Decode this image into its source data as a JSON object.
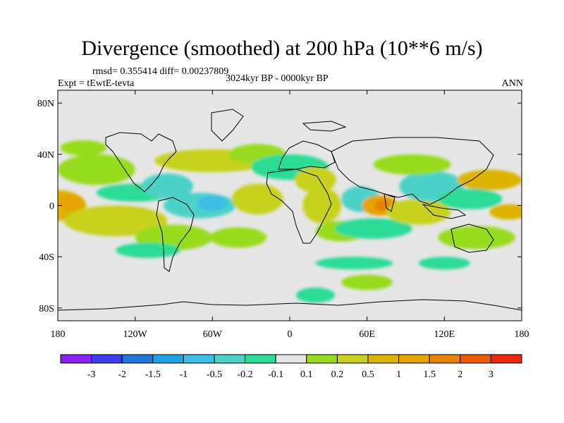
{
  "title": "Divergence (smoothed) at 200 hPa (10**6 m/s)",
  "stats": "rmsd= 0.355414 diff= 0.00237809",
  "experiment": "Expt = tEwtE-tevta",
  "period": "3024kyr BP - 0000kyr BP",
  "season": "ANN",
  "map": {
    "lon_range": [
      -180,
      180
    ],
    "lat_range": [
      -90,
      90
    ],
    "lon_ticks": [
      {
        "value": -180,
        "label": "180"
      },
      {
        "value": -120,
        "label": "120W"
      },
      {
        "value": -60,
        "label": "60W"
      },
      {
        "value": 0,
        "label": "0"
      },
      {
        "value": 60,
        "label": "60E"
      },
      {
        "value": 120,
        "label": "120E"
      },
      {
        "value": 180,
        "label": "180"
      }
    ],
    "lat_ticks": [
      {
        "value": 80,
        "label": "80N"
      },
      {
        "value": 40,
        "label": "40N"
      },
      {
        "value": 0,
        "label": "0"
      },
      {
        "value": -40,
        "label": "40S"
      },
      {
        "value": -80,
        "label": "80S"
      }
    ],
    "neutral_color": "#e6e6e6",
    "anomaly_regions": [
      {
        "lon": -180,
        "lat": 0,
        "rlon": 22,
        "rlat": 12,
        "level": 3
      },
      {
        "lon": -170,
        "lat": 2,
        "rlon": 10,
        "rlat": 6,
        "level": 4
      },
      {
        "lon": -135,
        "lat": -12,
        "rlon": 40,
        "rlat": 12,
        "level": 2
      },
      {
        "lon": -150,
        "lat": 28,
        "rlon": 30,
        "rlat": 12,
        "level": 1
      },
      {
        "lon": -160,
        "lat": 45,
        "rlon": 18,
        "rlat": 6,
        "level": 1
      },
      {
        "lon": -120,
        "lat": 10,
        "rlon": 30,
        "rlat": 7,
        "level": -1
      },
      {
        "lon": -95,
        "lat": 15,
        "rlon": 20,
        "rlat": 10,
        "level": -2
      },
      {
        "lon": -70,
        "lat": 0,
        "rlon": 28,
        "rlat": 10,
        "level": -2
      },
      {
        "lon": -60,
        "lat": 2,
        "rlon": 12,
        "rlat": 6,
        "level": -3
      },
      {
        "lon": -60,
        "lat": 35,
        "rlon": 45,
        "rlat": 9,
        "level": 2
      },
      {
        "lon": -25,
        "lat": 40,
        "rlon": 22,
        "rlat": 8,
        "level": 1
      },
      {
        "lon": -90,
        "lat": -25,
        "rlon": 30,
        "rlat": 10,
        "level": 1
      },
      {
        "lon": -40,
        "lat": -25,
        "rlon": 22,
        "rlat": 8,
        "level": 1
      },
      {
        "lon": -25,
        "lat": 5,
        "rlon": 20,
        "rlat": 12,
        "level": 2
      },
      {
        "lon": 0,
        "lat": 30,
        "rlon": 30,
        "rlat": 10,
        "level": -1
      },
      {
        "lon": 20,
        "lat": 20,
        "rlon": 16,
        "rlat": 10,
        "level": 2
      },
      {
        "lon": 25,
        "lat": 0,
        "rlon": 15,
        "rlat": 14,
        "level": 2
      },
      {
        "lon": 40,
        "lat": -20,
        "rlon": 20,
        "rlat": 8,
        "level": 1
      },
      {
        "lon": 55,
        "lat": 5,
        "rlon": 15,
        "rlat": 10,
        "level": -2
      },
      {
        "lon": 70,
        "lat": 0,
        "rlon": 14,
        "rlat": 8,
        "level": 4
      },
      {
        "lon": 72,
        "lat": 0,
        "rlon": 6,
        "rlat": 4,
        "level": 5
      },
      {
        "lon": 65,
        "lat": -18,
        "rlon": 30,
        "rlat": 8,
        "level": -1
      },
      {
        "lon": 100,
        "lat": -5,
        "rlon": 25,
        "rlat": 10,
        "level": 2
      },
      {
        "lon": 110,
        "lat": 15,
        "rlon": 25,
        "rlat": 12,
        "level": -2
      },
      {
        "lon": 95,
        "lat": 32,
        "rlon": 30,
        "rlat": 8,
        "level": 1
      },
      {
        "lon": 155,
        "lat": 20,
        "rlon": 25,
        "rlat": 8,
        "level": 3
      },
      {
        "lon": 140,
        "lat": 5,
        "rlon": 25,
        "rlat": 8,
        "level": -1
      },
      {
        "lon": 170,
        "lat": -5,
        "rlon": 15,
        "rlat": 6,
        "level": 3
      },
      {
        "lon": 145,
        "lat": -25,
        "rlon": 30,
        "rlat": 9,
        "level": 1
      },
      {
        "lon": -110,
        "lat": -35,
        "rlon": 25,
        "rlat": 6,
        "level": -1
      },
      {
        "lon": 50,
        "lat": -45,
        "rlon": 30,
        "rlat": 5,
        "level": -1
      },
      {
        "lon": 120,
        "lat": -45,
        "rlon": 20,
        "rlat": 5,
        "level": -1
      },
      {
        "lon": 60,
        "lat": -60,
        "rlon": 20,
        "rlat": 6,
        "level": 1
      },
      {
        "lon": 20,
        "lat": -70,
        "rlon": 15,
        "rlat": 6,
        "level": -1
      }
    ]
  },
  "colorbar": {
    "colors": [
      "#8a1ef0",
      "#3c3cf0",
      "#1e78dc",
      "#1ea0e6",
      "#3cbee6",
      "#4cd2c8",
      "#2adc96",
      "#e6e6e6",
      "#96dc1e",
      "#c8d21e",
      "#dcb400",
      "#e6a000",
      "#e68200",
      "#f05a00",
      "#f0280a"
    ],
    "labels": [
      "-3",
      "-2",
      "-1.5",
      "-1",
      "-0.5",
      "-0.2",
      "-0.1",
      "0.1",
      "0.2",
      "0.5",
      "1",
      "1.5",
      "2",
      "3"
    ]
  }
}
